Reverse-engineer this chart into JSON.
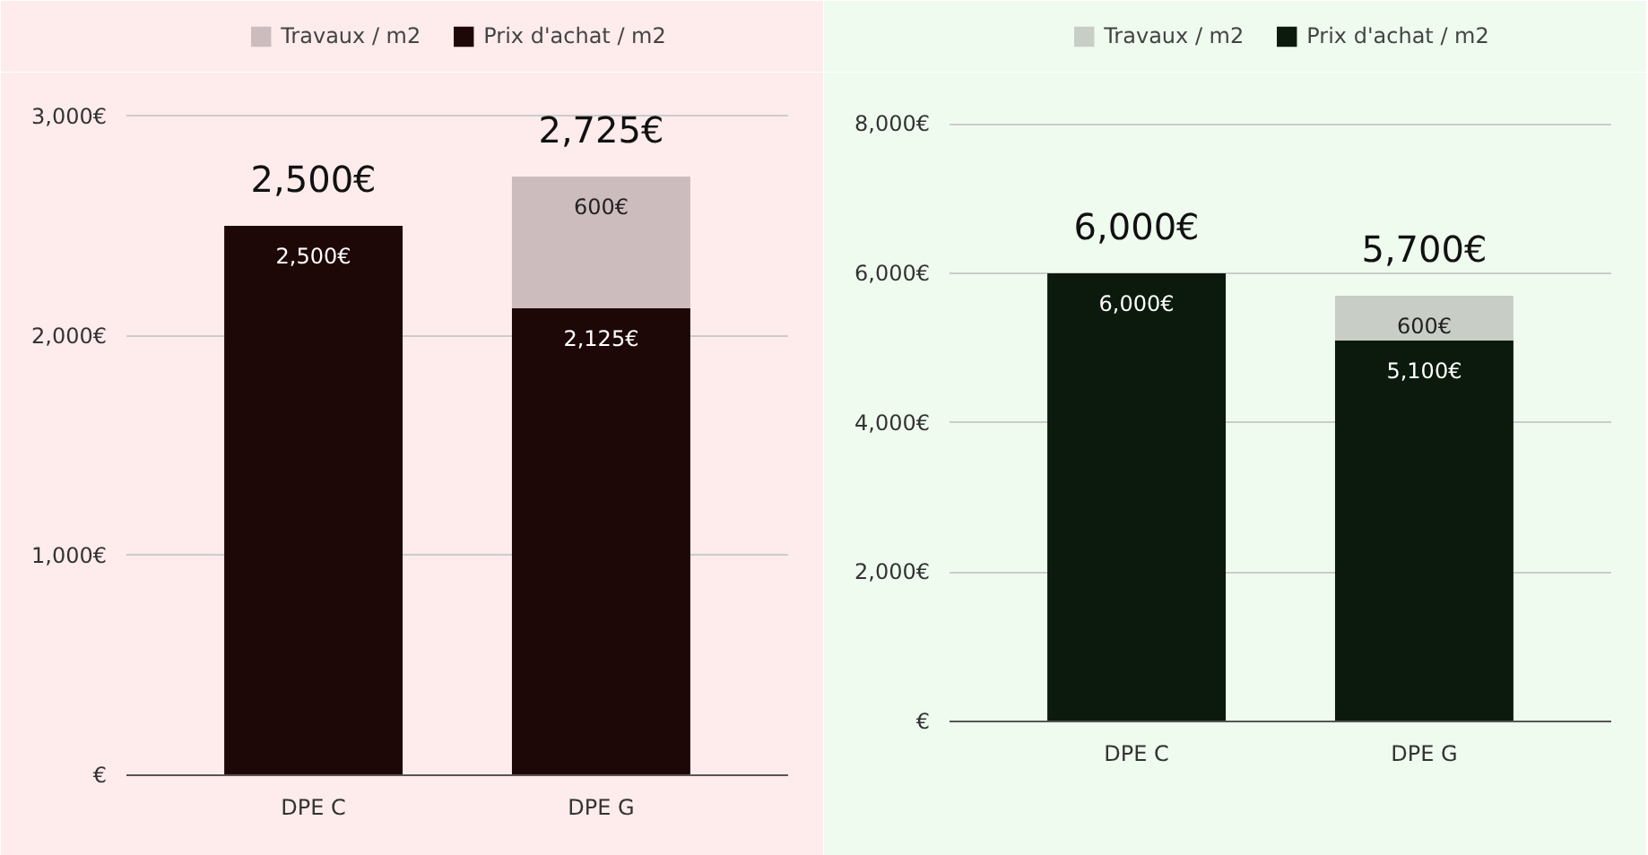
{
  "chart_data": [
    {
      "type": "bar",
      "stacked": true,
      "categories": [
        "DPE C",
        "DPE G"
      ],
      "legend": "top",
      "grid": "y",
      "ylim": [
        0,
        3100
      ],
      "yticks": [
        {
          "value": 0,
          "label": "€"
        },
        {
          "value": 1000,
          "label": "1,000€"
        },
        {
          "value": 2000,
          "label": "2,000€"
        },
        {
          "value": 3000,
          "label": "3,000€"
        }
      ],
      "series": [
        {
          "name": "Prix d'achat / m2",
          "color": "#1e0707",
          "values": [
            2500,
            2125
          ],
          "value_labels": [
            "2,500€",
            "2,125€"
          ]
        },
        {
          "name": "Travaux / m2",
          "color": "#cdbcbd",
          "values": [
            null,
            600
          ],
          "value_labels": [
            null,
            "600€"
          ]
        }
      ],
      "totals": [
        "2,500€",
        "2,725€"
      ]
    },
    {
      "type": "bar",
      "stacked": true,
      "categories": [
        "DPE C",
        "DPE G"
      ],
      "legend": "top",
      "grid": "y",
      "ylim": [
        0,
        8400
      ],
      "yticks": [
        {
          "value": 0,
          "label": "€"
        },
        {
          "value": 2000,
          "label": "2,000€"
        },
        {
          "value": 4000,
          "label": "4,000€"
        },
        {
          "value": 6000,
          "label": "6,000€"
        },
        {
          "value": 8000,
          "label": "8,000€"
        }
      ],
      "series": [
        {
          "name": "Prix d'achat / m2",
          "color": "#0b1a0c",
          "values": [
            6000,
            5100
          ],
          "value_labels": [
            "6,000€",
            "5,100€"
          ]
        },
        {
          "name": "Travaux / m2",
          "color": "#c8cdc6",
          "values": [
            null,
            600
          ],
          "value_labels": [
            null,
            "600€"
          ]
        }
      ],
      "totals": [
        "6,000€",
        "5,700€"
      ]
    }
  ]
}
